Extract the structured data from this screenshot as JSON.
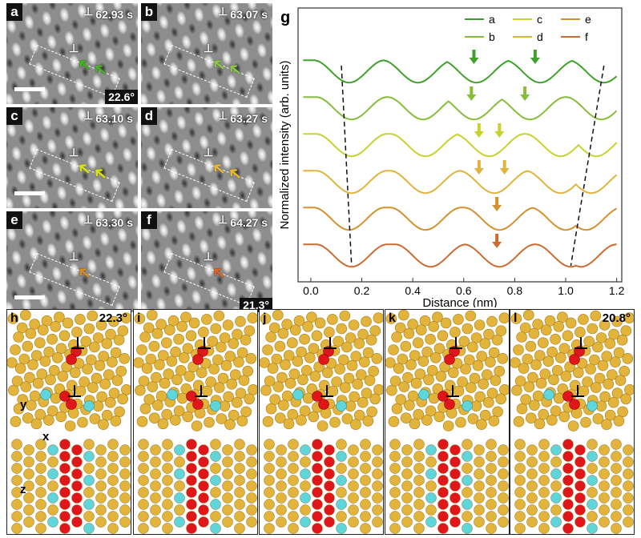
{
  "tem_panels": [
    {
      "label": "a",
      "time": "62.93 s",
      "angle": "22.6°",
      "arrow_color": "#4caf2a"
    },
    {
      "label": "b",
      "time": "63.07 s",
      "angle": "",
      "arrow_color": "#8bc34a"
    },
    {
      "label": "c",
      "time": "63.10 s",
      "angle": "",
      "arrow_color": "#d6e21a"
    },
    {
      "label": "d",
      "time": "63.27 s",
      "angle": "",
      "arrow_color": "#e6b83a"
    },
    {
      "label": "e",
      "time": "63.30 s",
      "angle": "",
      "arrow_color": "#d98c2a"
    },
    {
      "label": "f",
      "time": "64.27 s",
      "angle": "21.3°",
      "arrow_color": "#d9662a"
    }
  ],
  "dislocation_symbol": "⊥",
  "chart_data": {
    "type": "line",
    "panel_label": "g",
    "xlabel": "Distance (nm)",
    "ylabel": "Normalized intensity (arb. units)",
    "xlim": [
      -0.05,
      1.22
    ],
    "xticks": [
      "0.0",
      "0.2",
      "0.4",
      "0.6",
      "0.8",
      "1.0",
      "1.2"
    ],
    "xtick_values": [
      0.0,
      0.2,
      0.4,
      0.6,
      0.8,
      1.0,
      1.2
    ],
    "legend": [
      "a",
      "c",
      "e",
      "b",
      "d",
      "f"
    ],
    "series": [
      {
        "name": "a",
        "color": "#3fa12a",
        "offset": 5,
        "minima": [
          0.15,
          0.42,
          0.65,
          0.9,
          1.15
        ],
        "arrows": [
          0.64,
          0.88
        ]
      },
      {
        "name": "b",
        "color": "#86bd3a",
        "offset": 4,
        "minima": [
          0.16,
          0.44,
          0.64,
          0.86,
          1.14
        ],
        "arrows": [
          0.63,
          0.84
        ]
      },
      {
        "name": "c",
        "color": "#c8d22e",
        "offset": 3,
        "minima": [
          0.16,
          0.45,
          0.7,
          0.98,
          1.12
        ],
        "arrows": [
          0.66,
          0.74
        ]
      },
      {
        "name": "d",
        "color": "#e0b43a",
        "offset": 2,
        "minima": [
          0.16,
          0.45,
          0.72,
          0.98,
          1.1
        ],
        "arrows": [
          0.66,
          0.76
        ]
      },
      {
        "name": "e",
        "color": "#d4912e",
        "offset": 1,
        "minima": [
          0.15,
          0.45,
          0.74,
          1.0,
          1.08
        ],
        "arrows": [
          0.73
        ]
      },
      {
        "name": "f",
        "color": "#cf6a30",
        "offset": 0,
        "minima": [
          0.16,
          0.47,
          0.74,
          1.02,
          1.06
        ],
        "arrows": [
          0.73
        ]
      }
    ],
    "dashed_guides": [
      {
        "x_top": 0.12,
        "x_bottom": 0.16
      },
      {
        "x_top": 1.15,
        "x_bottom": 1.02
      }
    ]
  },
  "md_panels": [
    {
      "label": "h",
      "angle": "22.3°"
    },
    {
      "label": "i",
      "angle": ""
    },
    {
      "label": "j",
      "angle": ""
    },
    {
      "label": "k",
      "angle": ""
    },
    {
      "label": "l",
      "angle": "20.8°"
    }
  ],
  "axes_labels": {
    "y": "y",
    "x1": "x",
    "z": "z",
    "x2": "x"
  },
  "colors": {
    "gold": "#e2b43c",
    "red": "#e0161a",
    "cyan": "#5fd6dc"
  }
}
